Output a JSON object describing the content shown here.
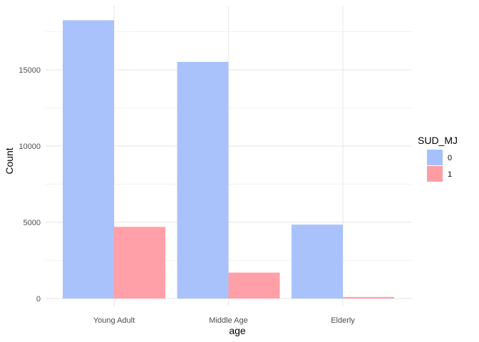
{
  "chart_data": {
    "type": "bar",
    "title": "",
    "xlabel": "age",
    "ylabel": "Count",
    "categories": [
      "Young Adult",
      "Middle Age",
      "Elderly"
    ],
    "series": [
      {
        "name": "0",
        "color": "#A6C0FB",
        "values": [
          18250,
          15520,
          4850
        ]
      },
      {
        "name": "1",
        "color": "#FF9DA5",
        "values": [
          4700,
          1700,
          100
        ]
      }
    ],
    "ylim": [
      0,
      18500
    ],
    "yticks": [
      0,
      5000,
      10000,
      15000
    ],
    "ytick_labels": [
      "0",
      "5000",
      "10000",
      "15000"
    ],
    "grid": true,
    "legend": {
      "title": "SUD_MJ",
      "position": "right",
      "entries": [
        "0",
        "1"
      ]
    }
  }
}
